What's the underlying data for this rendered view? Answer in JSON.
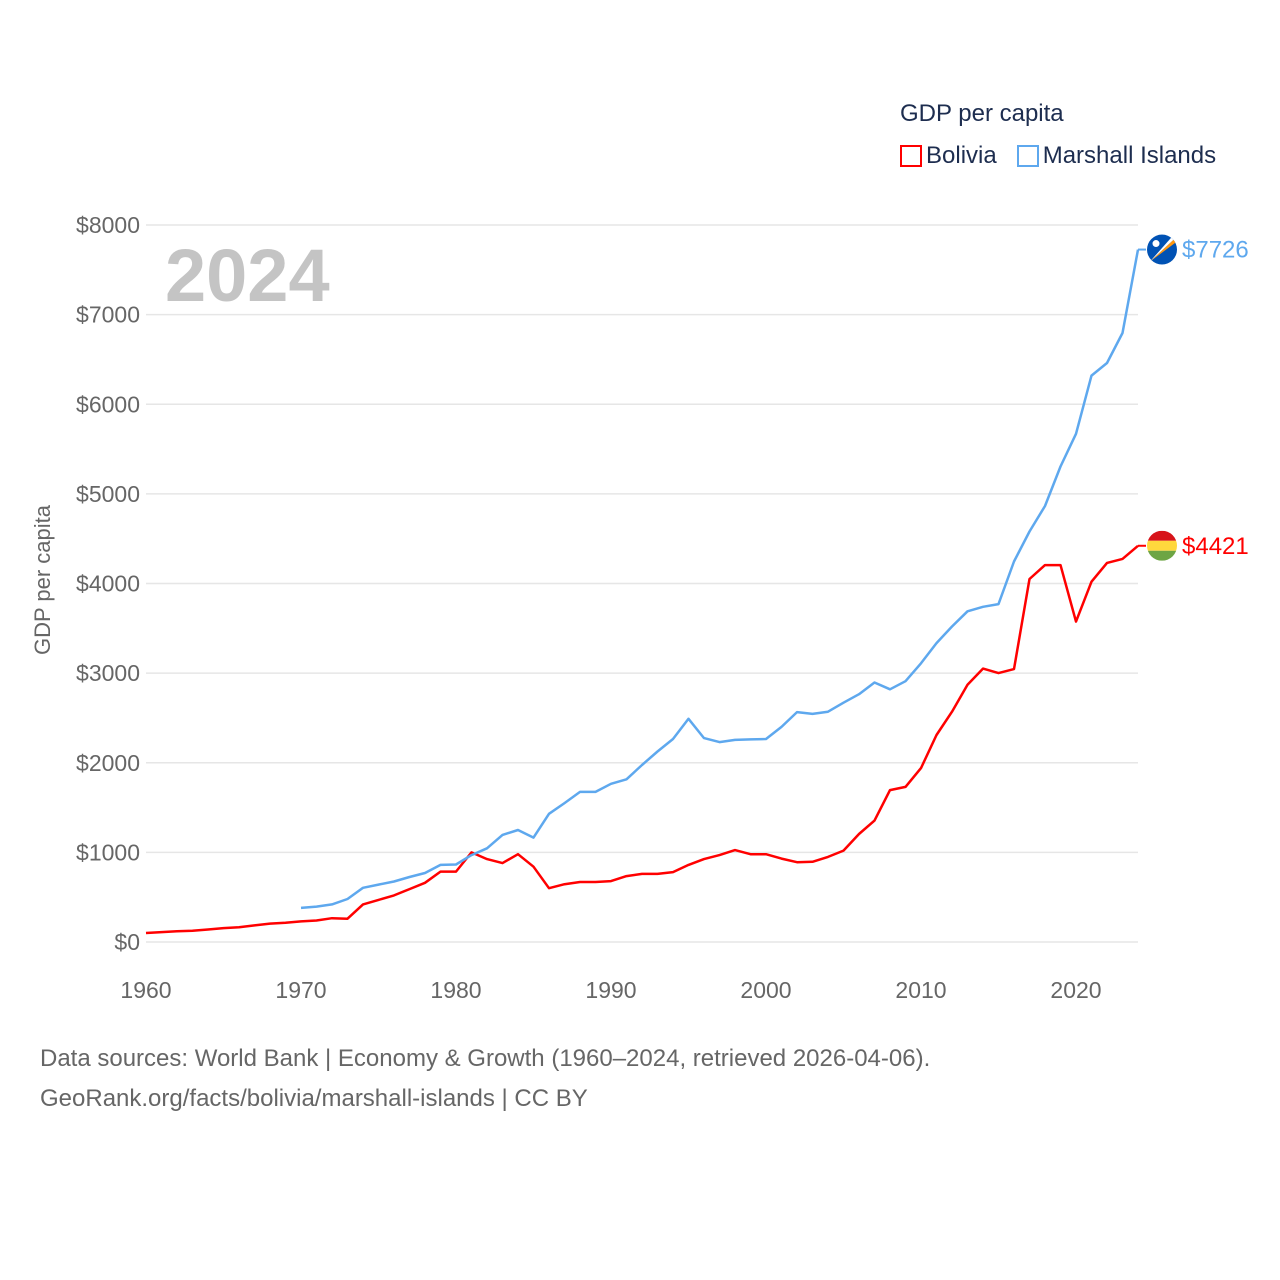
{
  "chart_data": {
    "type": "line",
    "title": "GDP per capita",
    "year_watermark": "2024",
    "ylabel": "GDP per capita",
    "xlabel": "",
    "xlim": [
      1960,
      2024
    ],
    "ylim": [
      0,
      8000
    ],
    "x_ticks": [
      "1960",
      "1970",
      "1980",
      "1990",
      "2000",
      "2010",
      "2020"
    ],
    "x_tick_values": [
      1960,
      1970,
      1980,
      1990,
      2000,
      2010,
      2020
    ],
    "y_ticks": [
      "$0",
      "$1000",
      "$2000",
      "$3000",
      "$4000",
      "$5000",
      "$6000",
      "$7000",
      "$8000"
    ],
    "y_tick_values": [
      0,
      1000,
      2000,
      3000,
      4000,
      5000,
      6000,
      7000,
      8000
    ],
    "grid": true,
    "legend_placement": "top-right",
    "series": [
      {
        "name": "Bolivia",
        "color": "#ff0000",
        "end_label": "$4421",
        "flag": "bolivia-flag",
        "start_year": 1960,
        "values": [
          100,
          110,
          120,
          125,
          140,
          155,
          165,
          185,
          205,
          215,
          230,
          240,
          265,
          260,
          420,
          470,
          520,
          590,
          660,
          785,
          785,
          1000,
          925,
          880,
          980,
          840,
          600,
          645,
          670,
          670,
          680,
          735,
          760,
          760,
          780,
          860,
          925,
          970,
          1025,
          980,
          980,
          930,
          890,
          895,
          950,
          1020,
          1205,
          1355,
          1695,
          1730,
          1940,
          2310,
          2570,
          2870,
          3050,
          3000,
          3045,
          4050,
          4205,
          4205,
          3575,
          4020,
          4230,
          4275,
          4421
        ]
      },
      {
        "name": "Marshall Islands",
        "color": "#5ea8ee",
        "end_label": "$7726",
        "flag": "marshall-islands-flag",
        "start_year": 1970,
        "values": [
          380,
          395,
          420,
          480,
          605,
          640,
          675,
          725,
          770,
          860,
          865,
          970,
          1045,
          1195,
          1250,
          1165,
          1430,
          1550,
          1675,
          1675,
          1765,
          1815,
          1975,
          2125,
          2265,
          2490,
          2275,
          2230,
          2255,
          2260,
          2265,
          2400,
          2565,
          2545,
          2570,
          2670,
          2765,
          2895,
          2820,
          2910,
          3110,
          3335,
          3520,
          3690,
          3740,
          3770,
          4245,
          4580,
          4865,
          5305,
          5670,
          6320,
          6460,
          6795,
          7726
        ]
      }
    ]
  },
  "footer": {
    "line1": "Data sources: World Bank | Economy & Growth (1960–2024, retrieved 2026-04-06).",
    "line2": "GeoRank.org/facts/bolivia/marshall-islands | CC BY"
  }
}
